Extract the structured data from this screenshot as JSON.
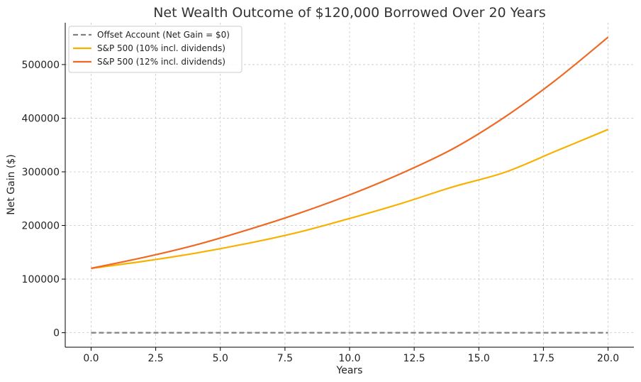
{
  "chart_data": {
    "type": "line",
    "title": "Net Wealth Outcome of $120,000 Borrowed Over 20 Years",
    "xlabel": "Years",
    "ylabel": "Net Gain ($)",
    "xlim": [
      -1,
      21
    ],
    "ylim": [
      -27000,
      578000
    ],
    "xticks": [
      0.0,
      2.5,
      5.0,
      7.5,
      10.0,
      12.5,
      15.0,
      17.5,
      20.0
    ],
    "xtick_labels": [
      "0.0",
      "2.5",
      "5.0",
      "7.5",
      "10.0",
      "12.5",
      "15.0",
      "17.5",
      "20.0"
    ],
    "yticks": [
      0,
      100000,
      200000,
      300000,
      400000,
      500000
    ],
    "ytick_labels": [
      "0",
      "100000",
      "200000",
      "300000",
      "400000",
      "500000"
    ],
    "grid": true,
    "legend_position": "top-left",
    "x": [
      0,
      2,
      4,
      6,
      8,
      10,
      12,
      14,
      16,
      18,
      20
    ],
    "series": [
      {
        "name": "Offset Account (Net Gain = $0)",
        "color": "#808080",
        "style": "dashed",
        "values": [
          0,
          0,
          0,
          0,
          0,
          0,
          0,
          0,
          0,
          0,
          0
        ]
      },
      {
        "name": "S&P 500 (10% incl. dividends)",
        "color": "#f8b100",
        "style": "solid",
        "values": [
          120000,
          133000,
          148000,
          166000,
          187000,
          213000,
          241000,
          272000,
          299000,
          339000,
          379000
        ]
      },
      {
        "name": "S&P 500 (12% incl. dividends)",
        "color": "#ee6a24",
        "style": "solid",
        "values": [
          120000,
          140000,
          163000,
          191000,
          222000,
          257000,
          297000,
          343000,
          402000,
          472000,
          551000
        ]
      }
    ]
  }
}
